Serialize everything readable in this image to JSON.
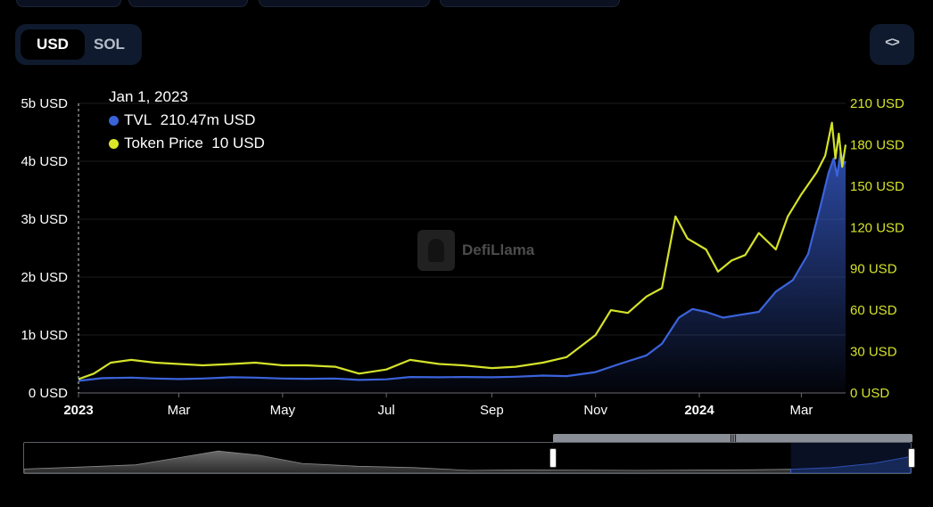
{
  "denomination_toggle": {
    "options": [
      "USD",
      "SOL"
    ],
    "selected": "USD"
  },
  "embed_button": {
    "icon": "code-icon",
    "label": "<>"
  },
  "tooltip": {
    "date": "Jan 1, 2023",
    "tvl_label": "TVL",
    "tvl_value": "210.47m USD",
    "price_label": "Token Price",
    "price_value": "10 USD"
  },
  "watermark": {
    "text": "DefiLlama",
    "icon": "llama-logo-icon"
  },
  "colors": {
    "tvl": "#3b63db",
    "price": "#d4e22a",
    "grid": "#1c1c1c",
    "axis_text": "#ffffff",
    "right_axis_text": "#d4e22a",
    "background": "#000000"
  },
  "chart_data": {
    "type": "line",
    "x_range": [
      "2023-01-01",
      "2024-03-27"
    ],
    "x_ticks": [
      {
        "date": "2023-01-01",
        "label": "2023",
        "bold": true
      },
      {
        "date": "2023-03-01",
        "label": "Mar",
        "bold": false
      },
      {
        "date": "2023-05-01",
        "label": "May",
        "bold": false
      },
      {
        "date": "2023-07-01",
        "label": "Jul",
        "bold": false
      },
      {
        "date": "2023-09-01",
        "label": "Sep",
        "bold": false
      },
      {
        "date": "2023-11-01",
        "label": "Nov",
        "bold": false
      },
      {
        "date": "2024-01-01",
        "label": "2024",
        "bold": true
      },
      {
        "date": "2024-03-01",
        "label": "Mar",
        "bold": false
      }
    ],
    "y_left": {
      "range": [
        0,
        5000000000
      ],
      "ticks": [
        "0 USD",
        "1b USD",
        "2b USD",
        "3b USD",
        "4b USD",
        "5b USD"
      ],
      "tick_values": [
        0,
        1000000000,
        2000000000,
        3000000000,
        4000000000,
        5000000000
      ]
    },
    "y_right": {
      "range": [
        0,
        210
      ],
      "ticks": [
        "0 USD",
        "30 USD",
        "60 USD",
        "90 USD",
        "120 USD",
        "150 USD",
        "180 USD",
        "210 USD"
      ],
      "tick_values": [
        0,
        30,
        60,
        90,
        120,
        150,
        180,
        210
      ]
    },
    "grid": true,
    "series": [
      {
        "name": "TVL",
        "axis": "left",
        "style": "area",
        "points": [
          [
            "2023-01-01",
            210000000
          ],
          [
            "2023-01-15",
            255000000
          ],
          [
            "2023-02-01",
            265000000
          ],
          [
            "2023-02-15",
            250000000
          ],
          [
            "2023-03-01",
            240000000
          ],
          [
            "2023-03-15",
            250000000
          ],
          [
            "2023-04-01",
            270000000
          ],
          [
            "2023-04-15",
            265000000
          ],
          [
            "2023-05-01",
            250000000
          ],
          [
            "2023-05-15",
            245000000
          ],
          [
            "2023-06-01",
            250000000
          ],
          [
            "2023-06-15",
            225000000
          ],
          [
            "2023-07-01",
            235000000
          ],
          [
            "2023-07-15",
            275000000
          ],
          [
            "2023-08-01",
            270000000
          ],
          [
            "2023-08-15",
            275000000
          ],
          [
            "2023-09-01",
            270000000
          ],
          [
            "2023-09-15",
            280000000
          ],
          [
            "2023-10-01",
            300000000
          ],
          [
            "2023-10-15",
            290000000
          ],
          [
            "2023-11-01",
            360000000
          ],
          [
            "2023-11-15",
            500000000
          ],
          [
            "2023-12-01",
            650000000
          ],
          [
            "2023-12-10",
            850000000
          ],
          [
            "2023-12-20",
            1300000000
          ],
          [
            "2023-12-28",
            1450000000
          ],
          [
            "2024-01-05",
            1400000000
          ],
          [
            "2024-01-15",
            1300000000
          ],
          [
            "2024-01-25",
            1350000000
          ],
          [
            "2024-02-05",
            1400000000
          ],
          [
            "2024-02-15",
            1750000000
          ],
          [
            "2024-02-25",
            1950000000
          ],
          [
            "2024-03-05",
            2400000000
          ],
          [
            "2024-03-12",
            3200000000
          ],
          [
            "2024-03-17",
            3800000000
          ],
          [
            "2024-03-20",
            4050000000
          ],
          [
            "2024-03-22",
            3750000000
          ],
          [
            "2024-03-24",
            4150000000
          ],
          [
            "2024-03-26",
            3950000000
          ],
          [
            "2024-03-27",
            4000000000
          ]
        ]
      },
      {
        "name": "Token Price",
        "axis": "right",
        "style": "line",
        "points": [
          [
            "2023-01-01",
            10
          ],
          [
            "2023-01-10",
            14
          ],
          [
            "2023-01-20",
            22
          ],
          [
            "2023-02-01",
            24
          ],
          [
            "2023-02-15",
            22
          ],
          [
            "2023-03-01",
            21
          ],
          [
            "2023-03-15",
            20
          ],
          [
            "2023-04-01",
            21
          ],
          [
            "2023-04-15",
            22
          ],
          [
            "2023-05-01",
            20
          ],
          [
            "2023-05-15",
            20
          ],
          [
            "2023-06-01",
            19
          ],
          [
            "2023-06-15",
            14
          ],
          [
            "2023-07-01",
            17
          ],
          [
            "2023-07-15",
            24
          ],
          [
            "2023-08-01",
            21
          ],
          [
            "2023-08-15",
            20
          ],
          [
            "2023-09-01",
            18
          ],
          [
            "2023-09-15",
            19
          ],
          [
            "2023-10-01",
            22
          ],
          [
            "2023-10-15",
            26
          ],
          [
            "2023-11-01",
            42
          ],
          [
            "2023-11-10",
            60
          ],
          [
            "2023-11-20",
            58
          ],
          [
            "2023-12-01",
            70
          ],
          [
            "2023-12-10",
            76
          ],
          [
            "2023-12-18",
            128
          ],
          [
            "2023-12-25",
            112
          ],
          [
            "2024-01-05",
            104
          ],
          [
            "2024-01-12",
            88
          ],
          [
            "2024-01-20",
            96
          ],
          [
            "2024-01-28",
            100
          ],
          [
            "2024-02-05",
            116
          ],
          [
            "2024-02-15",
            104
          ],
          [
            "2024-02-22",
            128
          ],
          [
            "2024-03-01",
            144
          ],
          [
            "2024-03-10",
            160
          ],
          [
            "2024-03-15",
            172
          ],
          [
            "2024-03-19",
            196
          ],
          [
            "2024-03-21",
            170
          ],
          [
            "2024-03-23",
            188
          ],
          [
            "2024-03-25",
            164
          ],
          [
            "2024-03-27",
            180
          ]
        ]
      }
    ]
  },
  "range_slider": {
    "overview_series": "Token Price",
    "selected_start": "2023-11-17",
    "selected_end": "2024-03-27",
    "overview_start": "2021-08-01"
  }
}
